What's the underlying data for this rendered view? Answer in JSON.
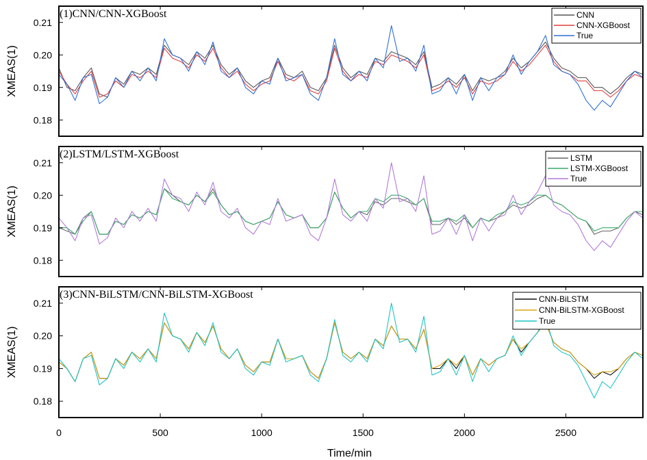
{
  "figure": {
    "xlabel": "Time/min",
    "ylabel": "XMEAS(1)",
    "x_ticks": [
      0,
      500,
      1000,
      1500,
      2000,
      2500
    ],
    "y_ticks": [
      0.18,
      0.19,
      0.2,
      0.21
    ],
    "y_tick_labels": [
      "0.18",
      "0.19",
      "0.20",
      "0.21"
    ]
  },
  "chart_data": [
    {
      "type": "line",
      "title": "(1)CNN/CNN-XGBoost",
      "xlabel": "",
      "ylabel": "XMEAS(1)",
      "xlim": [
        0,
        2880
      ],
      "ylim": [
        0.175,
        0.215
      ],
      "legend_position": "top-right",
      "x": [
        0,
        40,
        80,
        120,
        160,
        200,
        240,
        280,
        320,
        360,
        400,
        440,
        480,
        520,
        560,
        600,
        640,
        680,
        720,
        760,
        800,
        840,
        880,
        920,
        960,
        1000,
        1040,
        1080,
        1120,
        1160,
        1200,
        1240,
        1280,
        1320,
        1360,
        1400,
        1440,
        1480,
        1520,
        1560,
        1600,
        1640,
        1680,
        1720,
        1760,
        1800,
        1840,
        1880,
        1920,
        1960,
        2000,
        2040,
        2080,
        2120,
        2160,
        2200,
        2240,
        2280,
        2320,
        2360,
        2400,
        2440,
        2480,
        2520,
        2560,
        2600,
        2640,
        2680,
        2720,
        2760,
        2800,
        2840,
        2880
      ],
      "series": [
        {
          "name": "CNN",
          "color": "#555555",
          "values": [
            0.196,
            0.19,
            0.189,
            0.193,
            0.196,
            0.188,
            0.187,
            0.193,
            0.191,
            0.195,
            0.194,
            0.196,
            0.194,
            0.203,
            0.2,
            0.199,
            0.197,
            0.201,
            0.199,
            0.203,
            0.197,
            0.194,
            0.196,
            0.192,
            0.19,
            0.192,
            0.193,
            0.199,
            0.194,
            0.193,
            0.195,
            0.19,
            0.189,
            0.193,
            0.203,
            0.196,
            0.193,
            0.195,
            0.194,
            0.199,
            0.198,
            0.201,
            0.2,
            0.199,
            0.197,
            0.201,
            0.19,
            0.191,
            0.193,
            0.191,
            0.194,
            0.189,
            0.193,
            0.192,
            0.193,
            0.195,
            0.199,
            0.196,
            0.198,
            0.201,
            0.204,
            0.199,
            0.196,
            0.195,
            0.193,
            0.193,
            0.19,
            0.19,
            0.188,
            0.19,
            0.193,
            0.195,
            0.194
          ]
        },
        {
          "name": "CNN-XGBoost",
          "color": "#e03c3c",
          "values": [
            0.195,
            0.191,
            0.188,
            0.192,
            0.195,
            0.187,
            0.188,
            0.192,
            0.19,
            0.194,
            0.193,
            0.195,
            0.193,
            0.202,
            0.199,
            0.198,
            0.196,
            0.2,
            0.198,
            0.202,
            0.196,
            0.193,
            0.195,
            0.191,
            0.189,
            0.191,
            0.192,
            0.198,
            0.193,
            0.192,
            0.194,
            0.189,
            0.188,
            0.192,
            0.202,
            0.195,
            0.192,
            0.194,
            0.193,
            0.198,
            0.197,
            0.2,
            0.199,
            0.198,
            0.196,
            0.2,
            0.189,
            0.19,
            0.192,
            0.19,
            0.193,
            0.188,
            0.192,
            0.191,
            0.192,
            0.194,
            0.198,
            0.195,
            0.197,
            0.2,
            0.203,
            0.198,
            0.195,
            0.194,
            0.192,
            0.192,
            0.189,
            0.189,
            0.187,
            0.189,
            0.192,
            0.194,
            0.193
          ]
        },
        {
          "name": "True",
          "color": "#2f6fd6",
          "values": [
            0.194,
            0.191,
            0.186,
            0.193,
            0.194,
            0.185,
            0.187,
            0.193,
            0.19,
            0.195,
            0.192,
            0.196,
            0.192,
            0.205,
            0.2,
            0.199,
            0.195,
            0.201,
            0.197,
            0.204,
            0.195,
            0.193,
            0.196,
            0.19,
            0.188,
            0.192,
            0.191,
            0.199,
            0.192,
            0.193,
            0.194,
            0.188,
            0.186,
            0.193,
            0.205,
            0.194,
            0.192,
            0.195,
            0.192,
            0.199,
            0.196,
            0.209,
            0.198,
            0.199,
            0.195,
            0.203,
            0.188,
            0.189,
            0.193,
            0.188,
            0.194,
            0.186,
            0.193,
            0.189,
            0.193,
            0.194,
            0.2,
            0.194,
            0.198,
            0.201,
            0.206,
            0.197,
            0.195,
            0.194,
            0.191,
            0.186,
            0.183,
            0.186,
            0.184,
            0.188,
            0.192,
            0.195,
            0.193
          ]
        }
      ]
    },
    {
      "type": "line",
      "title": "(2)LSTM/LSTM-XGBoost",
      "xlabel": "",
      "ylabel": "XMEAS(1)",
      "xlim": [
        0,
        2880
      ],
      "ylim": [
        0.175,
        0.215
      ],
      "legend_position": "top-right",
      "x": [
        0,
        40,
        80,
        120,
        160,
        200,
        240,
        280,
        320,
        360,
        400,
        440,
        480,
        520,
        560,
        600,
        640,
        680,
        720,
        760,
        800,
        840,
        880,
        920,
        960,
        1000,
        1040,
        1080,
        1120,
        1160,
        1200,
        1240,
        1280,
        1320,
        1360,
        1400,
        1440,
        1480,
        1520,
        1560,
        1600,
        1640,
        1680,
        1720,
        1760,
        1800,
        1840,
        1880,
        1920,
        1960,
        2000,
        2040,
        2080,
        2120,
        2160,
        2200,
        2240,
        2280,
        2320,
        2360,
        2400,
        2440,
        2480,
        2520,
        2560,
        2600,
        2640,
        2680,
        2720,
        2760,
        2800,
        2840,
        2880
      ],
      "series": [
        {
          "name": "LSTM",
          "color": "#666666",
          "values": [
            0.19,
            0.189,
            0.188,
            0.193,
            0.195,
            0.188,
            0.188,
            0.192,
            0.191,
            0.194,
            0.193,
            0.195,
            0.194,
            0.202,
            0.2,
            0.198,
            0.197,
            0.2,
            0.198,
            0.202,
            0.197,
            0.194,
            0.195,
            0.192,
            0.191,
            0.192,
            0.193,
            0.198,
            0.194,
            0.193,
            0.194,
            0.19,
            0.19,
            0.193,
            0.201,
            0.196,
            0.193,
            0.195,
            0.194,
            0.198,
            0.197,
            0.199,
            0.199,
            0.198,
            0.197,
            0.199,
            0.191,
            0.191,
            0.193,
            0.191,
            0.193,
            0.19,
            0.193,
            0.192,
            0.193,
            0.195,
            0.197,
            0.196,
            0.197,
            0.199,
            0.2,
            0.198,
            0.197,
            0.195,
            0.193,
            0.192,
            0.188,
            0.189,
            0.189,
            0.19,
            0.193,
            0.195,
            0.194
          ]
        },
        {
          "name": "LSTM-XGBoost",
          "color": "#3aaa6a",
          "values": [
            0.19,
            0.19,
            0.188,
            0.192,
            0.195,
            0.188,
            0.188,
            0.192,
            0.191,
            0.194,
            0.193,
            0.195,
            0.194,
            0.202,
            0.199,
            0.198,
            0.197,
            0.2,
            0.198,
            0.201,
            0.197,
            0.194,
            0.195,
            0.192,
            0.191,
            0.192,
            0.193,
            0.198,
            0.194,
            0.193,
            0.194,
            0.19,
            0.19,
            0.193,
            0.201,
            0.196,
            0.193,
            0.195,
            0.195,
            0.199,
            0.198,
            0.2,
            0.2,
            0.199,
            0.197,
            0.199,
            0.192,
            0.192,
            0.193,
            0.192,
            0.194,
            0.19,
            0.193,
            0.192,
            0.194,
            0.195,
            0.198,
            0.197,
            0.198,
            0.2,
            0.2,
            0.198,
            0.197,
            0.195,
            0.193,
            0.192,
            0.189,
            0.19,
            0.19,
            0.19,
            0.193,
            0.195,
            0.195
          ]
        },
        {
          "name": "True",
          "color": "#b07ad8",
          "values": [
            0.193,
            0.19,
            0.186,
            0.193,
            0.194,
            0.185,
            0.187,
            0.193,
            0.19,
            0.195,
            0.192,
            0.196,
            0.192,
            0.205,
            0.2,
            0.199,
            0.195,
            0.201,
            0.197,
            0.204,
            0.195,
            0.193,
            0.196,
            0.19,
            0.188,
            0.192,
            0.191,
            0.199,
            0.192,
            0.193,
            0.194,
            0.188,
            0.186,
            0.193,
            0.205,
            0.194,
            0.192,
            0.195,
            0.192,
            0.199,
            0.196,
            0.21,
            0.198,
            0.199,
            0.195,
            0.206,
            0.188,
            0.189,
            0.193,
            0.188,
            0.194,
            0.186,
            0.193,
            0.189,
            0.193,
            0.194,
            0.2,
            0.194,
            0.198,
            0.201,
            0.206,
            0.197,
            0.195,
            0.194,
            0.191,
            0.186,
            0.183,
            0.186,
            0.184,
            0.188,
            0.192,
            0.195,
            0.193
          ]
        }
      ]
    },
    {
      "type": "line",
      "title": "(3)CNN-BiLSTM/CNN-BiLSTM-XGBoost",
      "xlabel": "Time/min",
      "ylabel": "XMEAS(1)",
      "xlim": [
        0,
        2880
      ],
      "ylim": [
        0.175,
        0.215
      ],
      "legend_position": "top-right",
      "x": [
        0,
        40,
        80,
        120,
        160,
        200,
        240,
        280,
        320,
        360,
        400,
        440,
        480,
        520,
        560,
        600,
        640,
        680,
        720,
        760,
        800,
        840,
        880,
        920,
        960,
        1000,
        1040,
        1080,
        1120,
        1160,
        1200,
        1240,
        1280,
        1320,
        1360,
        1400,
        1440,
        1480,
        1520,
        1560,
        1600,
        1640,
        1680,
        1720,
        1760,
        1800,
        1840,
        1880,
        1920,
        1960,
        2000,
        2040,
        2080,
        2120,
        2160,
        2200,
        2240,
        2280,
        2320,
        2360,
        2400,
        2440,
        2480,
        2520,
        2560,
        2600,
        2640,
        2680,
        2720,
        2760,
        2800,
        2840,
        2880
      ],
      "series": [
        {
          "name": "CNN-BiLSTM",
          "color": "#111111",
          "values": [
            0.192,
            0.19,
            0.186,
            0.193,
            0.195,
            0.187,
            0.187,
            0.193,
            0.191,
            0.195,
            0.193,
            0.196,
            0.193,
            0.204,
            0.2,
            0.199,
            0.196,
            0.201,
            0.198,
            0.203,
            0.196,
            0.193,
            0.196,
            0.191,
            0.189,
            0.192,
            0.192,
            0.199,
            0.193,
            0.193,
            0.194,
            0.189,
            0.187,
            0.193,
            0.204,
            0.195,
            0.193,
            0.195,
            0.193,
            0.199,
            0.197,
            0.203,
            0.199,
            0.199,
            0.196,
            0.202,
            0.19,
            0.19,
            0.193,
            0.19,
            0.194,
            0.188,
            0.193,
            0.191,
            0.193,
            0.194,
            0.199,
            0.195,
            0.198,
            0.201,
            0.204,
            0.198,
            0.196,
            0.195,
            0.192,
            0.19,
            0.187,
            0.189,
            0.188,
            0.19,
            0.193,
            0.195,
            0.194
          ]
        },
        {
          "name": "CNN-BiLSTM-XGBoost",
          "color": "#d9a514",
          "values": [
            0.192,
            0.19,
            0.186,
            0.193,
            0.195,
            0.187,
            0.187,
            0.193,
            0.191,
            0.195,
            0.193,
            0.196,
            0.193,
            0.204,
            0.2,
            0.199,
            0.196,
            0.201,
            0.198,
            0.203,
            0.196,
            0.193,
            0.196,
            0.191,
            0.189,
            0.192,
            0.192,
            0.199,
            0.193,
            0.193,
            0.194,
            0.189,
            0.187,
            0.193,
            0.204,
            0.195,
            0.193,
            0.195,
            0.193,
            0.199,
            0.197,
            0.203,
            0.199,
            0.199,
            0.196,
            0.202,
            0.19,
            0.191,
            0.193,
            0.191,
            0.194,
            0.188,
            0.193,
            0.191,
            0.193,
            0.194,
            0.199,
            0.196,
            0.198,
            0.201,
            0.204,
            0.198,
            0.196,
            0.195,
            0.192,
            0.19,
            0.188,
            0.189,
            0.189,
            0.19,
            0.193,
            0.195,
            0.194
          ]
        },
        {
          "name": "True",
          "color": "#1fc3c3",
          "values": [
            0.193,
            0.19,
            0.186,
            0.193,
            0.194,
            0.185,
            0.187,
            0.193,
            0.19,
            0.195,
            0.192,
            0.196,
            0.192,
            0.207,
            0.2,
            0.199,
            0.195,
            0.201,
            0.197,
            0.204,
            0.195,
            0.193,
            0.196,
            0.19,
            0.188,
            0.192,
            0.191,
            0.199,
            0.192,
            0.193,
            0.194,
            0.188,
            0.186,
            0.193,
            0.205,
            0.194,
            0.192,
            0.195,
            0.192,
            0.199,
            0.196,
            0.21,
            0.198,
            0.199,
            0.195,
            0.206,
            0.188,
            0.189,
            0.193,
            0.188,
            0.194,
            0.186,
            0.193,
            0.189,
            0.193,
            0.194,
            0.2,
            0.194,
            0.198,
            0.201,
            0.206,
            0.197,
            0.195,
            0.194,
            0.191,
            0.186,
            0.181,
            0.186,
            0.184,
            0.188,
            0.192,
            0.195,
            0.193
          ]
        }
      ]
    }
  ]
}
